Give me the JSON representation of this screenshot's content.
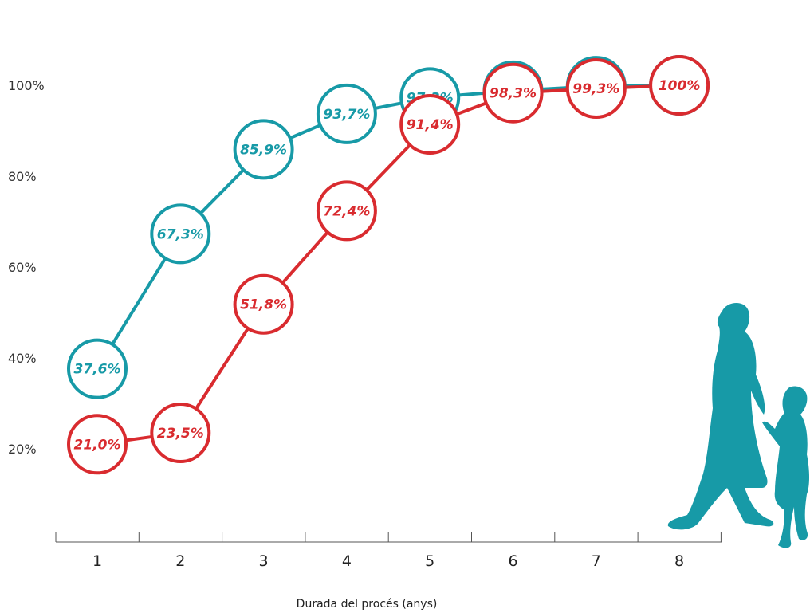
{
  "chart_data": {
    "type": "line",
    "title": "",
    "xlabel": "Durada del procés (anys)",
    "ylabel": "",
    "x": [
      1,
      2,
      3,
      4,
      5,
      6,
      7,
      8
    ],
    "x_tick_labels": [
      "1",
      "2",
      "3",
      "4",
      "5",
      "6",
      "7",
      "8"
    ],
    "y_tick_labels": [
      "20%",
      "40%",
      "60%",
      "80%",
      "100%"
    ],
    "y_ticks": [
      20,
      40,
      60,
      80,
      100
    ],
    "grid": false,
    "legend": "none",
    "series": [
      {
        "color": "#179aa7",
        "values": [
          37.6,
          67.3,
          85.9,
          93.7,
          97.3,
          98.8,
          99.8,
          100
        ],
        "labels": [
          "37,6%",
          "67,3%",
          "85,9%",
          "93,7%",
          "97,3%",
          "98,8%",
          "99,8%",
          "100%"
        ]
      },
      {
        "color": "#d92b2f",
        "values": [
          21.0,
          23.5,
          51.8,
          72.4,
          91.4,
          98.3,
          99.3,
          100
        ],
        "labels": [
          "21,0%",
          "23,5%",
          "51,8%",
          "72,4%",
          "91,4%",
          "98,3%",
          "99,3%",
          "100%"
        ]
      }
    ],
    "decoration": "silhouette-woman-and-girl-walking"
  }
}
